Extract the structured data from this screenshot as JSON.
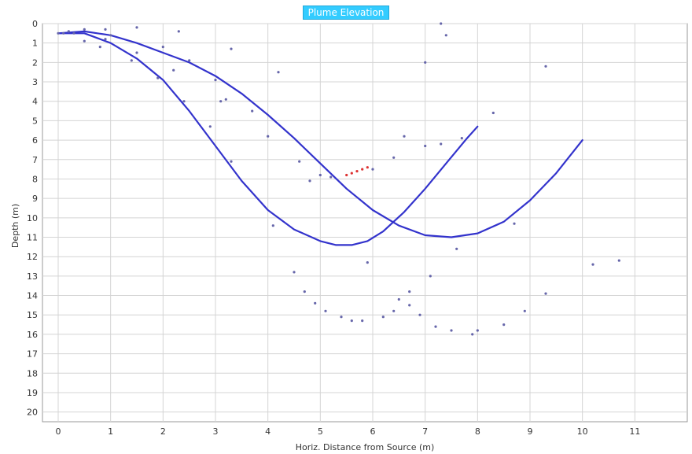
{
  "chart_data": {
    "type": "scatter",
    "title": "Plume Elevation",
    "xlabel": "Horiz. Distance from Source (m)",
    "ylabel": "Depth (m)",
    "xlim": [
      -0.3,
      12.0
    ],
    "ylim": [
      0,
      20.5
    ],
    "y_inverted": true,
    "grid": true,
    "x_ticks": [
      0,
      1,
      2,
      3,
      4,
      5,
      6,
      7,
      8,
      9,
      10,
      11
    ],
    "y_ticks": [
      0,
      1,
      2,
      3,
      4,
      5,
      6,
      7,
      8,
      9,
      10,
      11,
      12,
      13,
      14,
      15,
      16,
      17,
      18,
      19,
      20
    ],
    "colors": {
      "curve": "#3333cc",
      "points": "#6666aa",
      "highlight": "#dd3333",
      "title_bg": "#33ccff"
    },
    "series": [
      {
        "kind": "line",
        "x": [
          0.0,
          0.5,
          1.0,
          1.5,
          2.0,
          2.5,
          3.0,
          3.5,
          4.0,
          4.5,
          5.0,
          5.3,
          5.6,
          5.9,
          6.2,
          6.6,
          7.0,
          7.4,
          7.8,
          8.0
        ],
        "y": [
          0.5,
          0.5,
          1.0,
          1.8,
          2.9,
          4.5,
          6.3,
          8.1,
          9.6,
          10.6,
          11.2,
          11.4,
          11.4,
          11.2,
          10.7,
          9.7,
          8.5,
          7.2,
          5.9,
          5.3
        ]
      },
      {
        "kind": "line",
        "x": [
          0.0,
          0.5,
          1.0,
          1.5,
          2.0,
          2.5,
          3.0,
          3.5,
          4.0,
          4.5,
          5.0,
          5.5,
          6.0,
          6.5,
          7.0,
          7.5,
          8.0,
          8.5,
          9.0,
          9.5,
          10.0
        ],
        "y": [
          0.5,
          0.4,
          0.6,
          1.0,
          1.5,
          2.0,
          2.7,
          3.6,
          4.7,
          5.9,
          7.2,
          8.5,
          9.6,
          10.4,
          10.9,
          11.0,
          10.8,
          10.2,
          9.1,
          7.7,
          6.0
        ]
      },
      {
        "kind": "points",
        "x": [
          0.0,
          0.1,
          0.2,
          0.3,
          0.5,
          0.5,
          0.8,
          0.9,
          0.9,
          1.0,
          1.4,
          1.5,
          1.5,
          1.9,
          2.0,
          2.2,
          2.3,
          2.4,
          2.5,
          2.9,
          3.0,
          3.1,
          3.2,
          3.3,
          3.3,
          3.7,
          4.0,
          4.1,
          4.2,
          4.5,
          4.6,
          4.7,
          4.8,
          4.9,
          5.0,
          5.1,
          5.2,
          5.4,
          5.6,
          5.8,
          5.9,
          6.0,
          6.2,
          6.4,
          6.4,
          6.5,
          6.6,
          6.7,
          6.7,
          6.9,
          7.0,
          7.0,
          7.1,
          7.2,
          7.3,
          7.4,
          7.5,
          7.6,
          7.7,
          7.9,
          8.0,
          8.3,
          8.5,
          8.7,
          8.9,
          9.3,
          9.3,
          10.2,
          10.7,
          7.3
        ],
        "y": [
          0.5,
          0.5,
          0.4,
          0.5,
          0.3,
          0.9,
          1.2,
          0.3,
          0.8,
          0.6,
          1.9,
          0.2,
          1.5,
          2.8,
          1.2,
          2.4,
          0.4,
          4.0,
          1.9,
          5.3,
          2.9,
          4.0,
          3.9,
          1.3,
          7.1,
          4.5,
          5.8,
          10.4,
          2.5,
          12.8,
          7.1,
          13.8,
          8.1,
          14.4,
          7.8,
          14.8,
          7.9,
          15.1,
          15.3,
          15.3,
          12.3,
          7.5,
          15.1,
          14.8,
          6.9,
          14.2,
          5.8,
          14.5,
          13.8,
          15.0,
          6.3,
          2.0,
          13.0,
          15.6,
          6.2,
          0.6,
          15.8,
          11.6,
          5.9,
          16.0,
          15.8,
          4.6,
          15.5,
          10.3,
          14.8,
          13.9,
          2.2,
          12.4,
          12.2,
          0.0
        ]
      },
      {
        "kind": "points-highlight",
        "x": [
          5.5,
          5.6,
          5.7,
          5.8,
          5.9
        ],
        "y": [
          7.8,
          7.7,
          7.6,
          7.5,
          7.4
        ]
      }
    ]
  }
}
